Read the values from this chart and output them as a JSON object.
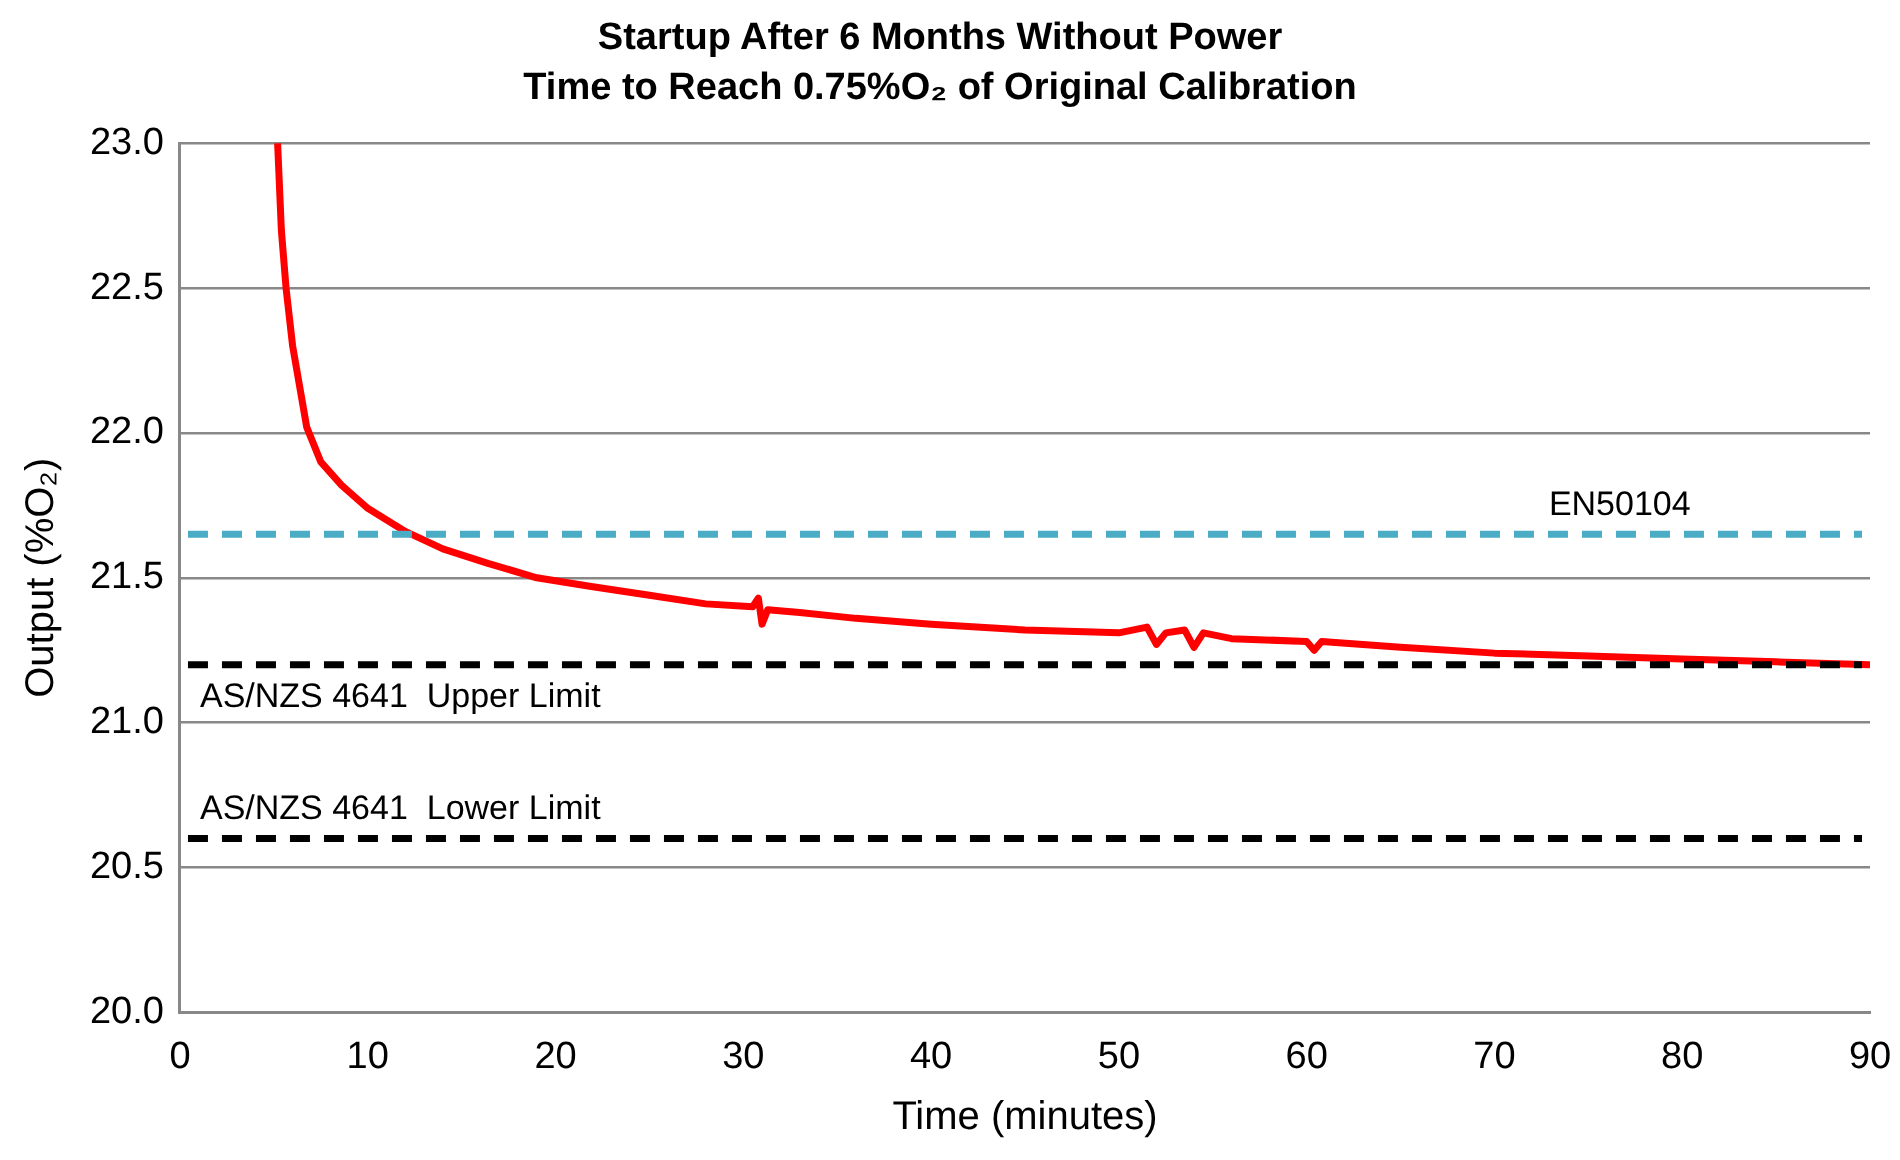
{
  "chart_data": {
    "type": "line",
    "title": "Startup After 6 Months Without Power",
    "subtitle": "Time to Reach 0.75%O₂ of Original Calibration",
    "xlabel": "Time (minutes)",
    "ylabel": "Output (%O₂)",
    "xlim": [
      0,
      90
    ],
    "xticks": [
      0,
      10,
      20,
      30,
      40,
      50,
      60,
      70,
      80,
      90
    ],
    "ylim": [
      20.0,
      23.0
    ],
    "yticks": [
      {
        "value": 20,
        "label": "20.0"
      },
      {
        "value": 20.5,
        "label": "20.5"
      },
      {
        "value": 21,
        "label": "21.0"
      },
      {
        "value": 21.5,
        "label": "21.5"
      },
      {
        "value": 22,
        "label": "22.0"
      },
      {
        "value": 22.5,
        "label": "22.5"
      },
      {
        "value": 23,
        "label": "23.0"
      }
    ],
    "grid": "y",
    "legend": false,
    "marker": "none",
    "line_style": "solid",
    "series": [
      {
        "color": "#ff0000",
        "x": [
          5.2,
          5.4,
          5.65,
          6.0,
          6.75,
          7.5,
          8.6,
          10,
          12,
          14,
          16.4,
          19,
          21.9,
          25,
          28,
          30.5,
          30.8,
          31,
          31.3,
          33,
          36,
          40,
          45,
          50,
          51.5,
          52,
          52.5,
          53.5,
          54,
          54.5,
          56,
          60,
          60.4,
          60.8,
          65,
          70,
          75,
          80,
          85,
          90
        ],
        "values": [
          23.0,
          22.7,
          22.5,
          22.3,
          22.02,
          21.9,
          21.82,
          21.74,
          21.66,
          21.6,
          21.55,
          21.5,
          21.47,
          21.44,
          21.41,
          21.4,
          21.43,
          21.34,
          21.39,
          21.38,
          21.36,
          21.34,
          21.32,
          21.31,
          21.33,
          21.27,
          21.31,
          21.32,
          21.26,
          21.31,
          21.29,
          21.28,
          21.25,
          21.28,
          21.26,
          21.24,
          21.23,
          21.22,
          21.21,
          21.2
        ]
      }
    ],
    "ref_lines": [
      {
        "axis": "y",
        "value": 21.65,
        "label": "EN50104",
        "color": "#4bacc6",
        "line_style": "dashed"
      },
      {
        "axis": "y",
        "value": 21.2,
        "label": "AS/NZS 4641  Upper Limit",
        "color": "#000000",
        "line_style": "dashed"
      },
      {
        "axis": "y",
        "value": 20.6,
        "label": "AS/NZS 4641  Lower Limit",
        "color": "#000000",
        "line_style": "dashed"
      }
    ]
  }
}
